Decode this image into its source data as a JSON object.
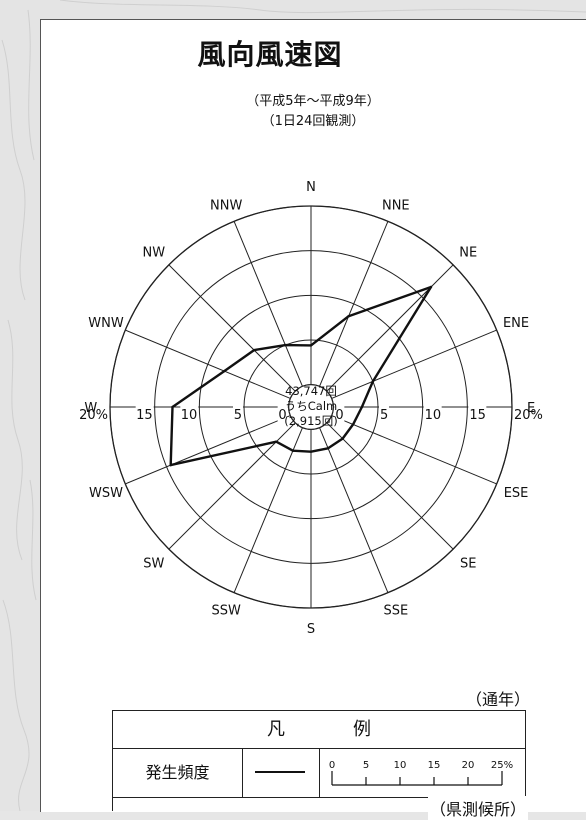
{
  "page": {
    "title": "風向風速図",
    "subtitle": "（平成5年～平成9年）",
    "subtitle2": "（1日24回観測）",
    "period": "（通年）",
    "source": "（県測候所）"
  },
  "legend": {
    "title": "凡例",
    "label": "発生頻度",
    "scale_ticks": [
      "0",
      "5",
      "10",
      "15",
      "20",
      "25%"
    ]
  },
  "center": {
    "line1": "43,747回",
    "line2": "うちCalm",
    "line3": "(2,915回)"
  },
  "chart_data": {
    "type": "radar",
    "directions": [
      "N",
      "NNE",
      "NE",
      "ENE",
      "E",
      "ESE",
      "SE",
      "SSE",
      "S",
      "SSW",
      "SW",
      "WSW",
      "W",
      "WNW",
      "NW",
      "NNW"
    ],
    "series": [
      {
        "values": [
          4.4,
          8.5,
          16.5,
          5.0,
          3.2,
          2.6,
          2.5,
          2.5,
          2.5,
          2.8,
          3.0,
          14.5,
          13.0,
          8.0,
          6.5,
          5.0
        ]
      }
    ],
    "radial_ticks": [
      0,
      5,
      10,
      15,
      20
    ],
    "radial_tick_labels": [
      "0",
      "5",
      "10",
      "15",
      "20%"
    ],
    "calm_circle": 2.5,
    "rmax": 22.5,
    "grid": true,
    "line_color": "#111111"
  }
}
